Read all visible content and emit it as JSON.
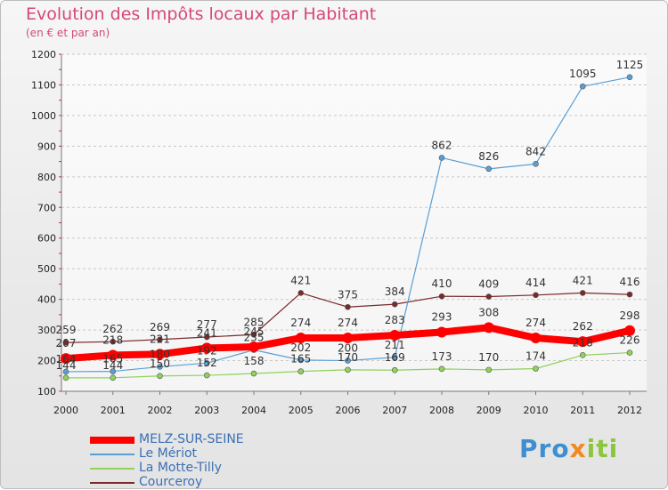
{
  "chart_data": {
    "type": "line",
    "title": "Evolution des Impôts locaux par Habitant",
    "subtitle": "(en € et par an)",
    "xlabel": "",
    "ylabel": "",
    "ylim": [
      100,
      1200
    ],
    "yticks": [
      100,
      200,
      300,
      400,
      500,
      600,
      700,
      800,
      900,
      1000,
      1100,
      1200
    ],
    "grid": "horizontal dashed",
    "categories": [
      "2000",
      "2001",
      "2002",
      "2003",
      "2004",
      "2005",
      "2006",
      "2007",
      "2008",
      "2009",
      "2010",
      "2011",
      "2012"
    ],
    "series": [
      {
        "name": "MELZ-SUR-SEINE",
        "color": "#ff0000",
        "values": [
          207,
          218,
          221,
          241,
          245,
          274,
          274,
          283,
          293,
          308,
          274,
          262,
          298
        ],
        "labels": [
          "207",
          "218",
          "221",
          "241",
          "245",
          "274",
          "274",
          "283",
          "293",
          "308",
          "274",
          "262",
          "298"
        ]
      },
      {
        "name": "Le Mériot",
        "color": "#5a9fd4",
        "values": [
          164,
          165,
          180,
          192,
          235,
          202,
          200,
          211,
          862,
          826,
          842,
          1095,
          1125
        ],
        "labels": [
          "164",
          "165",
          "180",
          "192",
          "235",
          "202",
          "200",
          "211",
          "862",
          "826",
          "842",
          "1095",
          "1125"
        ]
      },
      {
        "name": "La Motte-Tilly",
        "color": "#8fd25a",
        "values": [
          144,
          144,
          150,
          152,
          158,
          165,
          170,
          169,
          173,
          170,
          174,
          218,
          226
        ],
        "labels": [
          "144",
          "144",
          "150",
          "152",
          "158",
          "165",
          "170",
          "169",
          "173",
          "170",
          "174",
          "218",
          "226"
        ]
      },
      {
        "name": "Courceroy",
        "color": "#7a2a2a",
        "values": [
          259,
          262,
          269,
          277,
          285,
          421,
          375,
          384,
          410,
          409,
          414,
          421,
          416
        ],
        "labels": [
          "259",
          "262",
          "269",
          "277",
          "285",
          "421",
          "375",
          "384",
          "410",
          "409",
          "414",
          "421",
          "416"
        ]
      }
    ],
    "legend": "bottom-left"
  },
  "logo": {
    "part1": "Pro",
    "part2": "x",
    "part3": "iti"
  }
}
